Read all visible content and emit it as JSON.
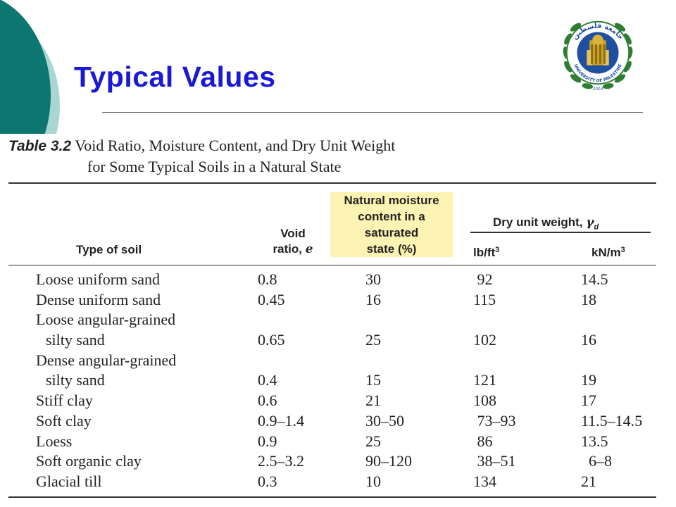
{
  "slide": {
    "title": "Typical Values"
  },
  "table": {
    "label": "Table 3.2",
    "caption_line1": "Void Ratio, Moisture Content, and Dry Unit Weight",
    "caption_line2": "for Some Typical Soils in a Natural State",
    "headers": {
      "type": "Type of soil",
      "void_line1": "Void",
      "void_line2": "ratio, ",
      "void_symbol": "e",
      "moist_line1": "Natural moisture",
      "moist_line2": "content in a",
      "moist_line3": "saturated",
      "moist_line4": "state (%)",
      "dry_group": "Dry unit weight, ",
      "dry_symbol": "γ",
      "dry_sub": "d",
      "lb": "lb/ft",
      "lb_exp": "3",
      "kn": "kN/m",
      "kn_exp": "3"
    },
    "rows": [
      {
        "type1": "Loose uniform sand",
        "type2": "",
        "void": "0.8",
        "moist": "30",
        "lb": " 92",
        "kn": "14.5"
      },
      {
        "type1": "Dense uniform sand",
        "type2": "",
        "void": "0.45",
        "moist": "16",
        "lb": "115",
        "kn": "18"
      },
      {
        "type1": "Loose angular-grained",
        "type2": "silty sand",
        "void": "0.65",
        "moist": "25",
        "lb": "102",
        "kn": "16"
      },
      {
        "type1": "Dense angular-grained",
        "type2": "silty sand",
        "void": "0.4",
        "moist": "15",
        "lb": "121",
        "kn": "19"
      },
      {
        "type1": "Stiff clay",
        "type2": "",
        "void": "0.6",
        "moist": "21",
        "lb": "108",
        "kn": "17"
      },
      {
        "type1": "Soft clay",
        "type2": "",
        "void": "0.9–1.4",
        "moist": "30–50",
        "lb": " 73–93",
        "kn": "11.5–14.5"
      },
      {
        "type1": "Loess",
        "type2": "",
        "void": "0.9",
        "moist": "25",
        "lb": " 86",
        "kn": "13.5"
      },
      {
        "type1": "Soft organic clay",
        "type2": "",
        "void": "2.5–3.2",
        "moist": "90–120",
        "lb": " 38–51",
        "kn": "  6–8"
      },
      {
        "type1": "Glacial till",
        "type2": "",
        "void": "0.3",
        "moist": "10",
        "lb": "134",
        "kn": "21"
      }
    ]
  },
  "logo": {
    "arabic": "جامعة فلسطين",
    "english": "UNIVERSITY OF PALESTINE",
    "year": "2003",
    "colors": {
      "ring": "#2e7d32",
      "badge": "#1e4fa0",
      "gold": "#c9a227"
    }
  }
}
